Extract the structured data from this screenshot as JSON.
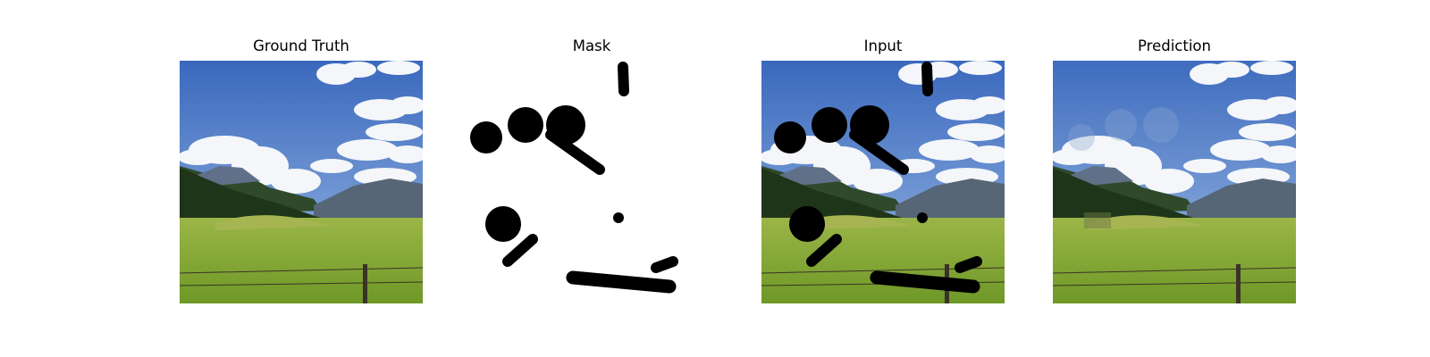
{
  "panels": [
    {
      "title": "Ground Truth",
      "image": "landscape-photo-original"
    },
    {
      "title": "Mask",
      "image": "binary-inpainting-mask"
    },
    {
      "title": "Input",
      "image": "landscape-photo-with-mask-holes"
    },
    {
      "title": "Prediction",
      "image": "landscape-photo-inpainted"
    }
  ],
  "colors": {
    "sky_top": "#3f6fc2",
    "sky_bottom": "#8fb3e0",
    "cloud": "#f4f6f9",
    "mountain_far": "#4b5d72",
    "mountain_near": "#5a6a7c",
    "forest": "#24381f",
    "meadow_top": "#8fae3e",
    "meadow_bottom": "#6f9a2a",
    "mask": "#000000",
    "fence": "#3a3326"
  }
}
